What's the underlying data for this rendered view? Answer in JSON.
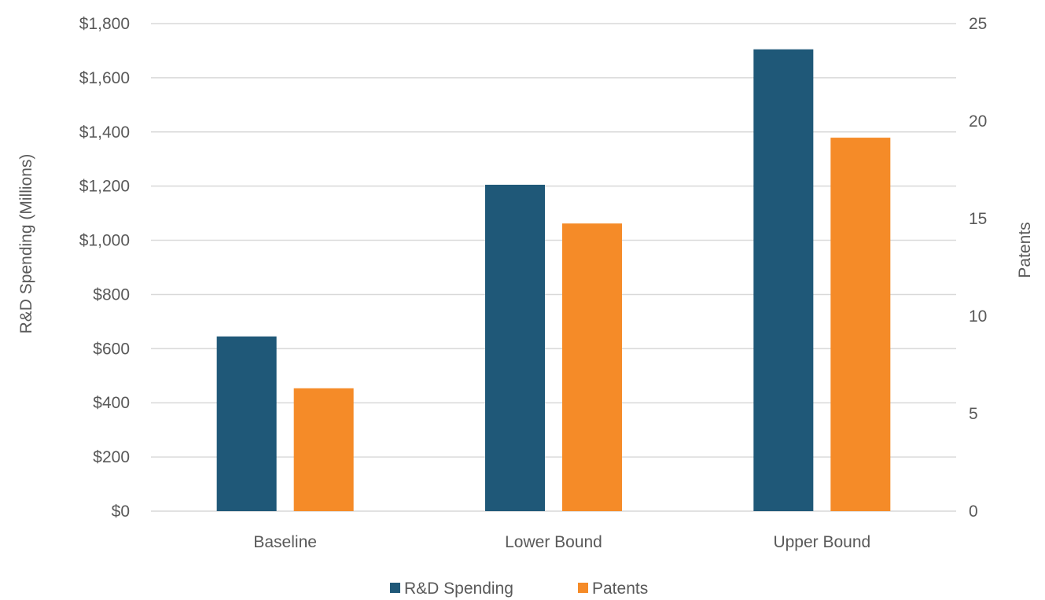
{
  "chart_data": {
    "type": "bar",
    "title": "",
    "categories": [
      "Baseline",
      "Lower Bound",
      "Upper Bound"
    ],
    "series": [
      {
        "name": "R&D Spending",
        "axis": "left",
        "color": "#1f5878",
        "values": [
          645,
          1205,
          1705
        ]
      },
      {
        "name": "Patents",
        "axis": "right",
        "color": "#f58b28",
        "values": [
          6.3,
          14.75,
          19.15
        ]
      }
    ],
    "ylabel": "R&D Spending (Millions)",
    "ylim": [
      0,
      1800
    ],
    "y_ticks": [
      "$0",
      "$200",
      "$400",
      "$600",
      "$800",
      "$1,000",
      "$1,200",
      "$1,400",
      "$1,600",
      "$1,800"
    ],
    "y2label": "Patents",
    "y2lim": [
      0,
      25
    ],
    "y2_ticks": [
      "0",
      "5",
      "10",
      "15",
      "20",
      "25"
    ],
    "grid": true,
    "legend_position": "bottom"
  }
}
